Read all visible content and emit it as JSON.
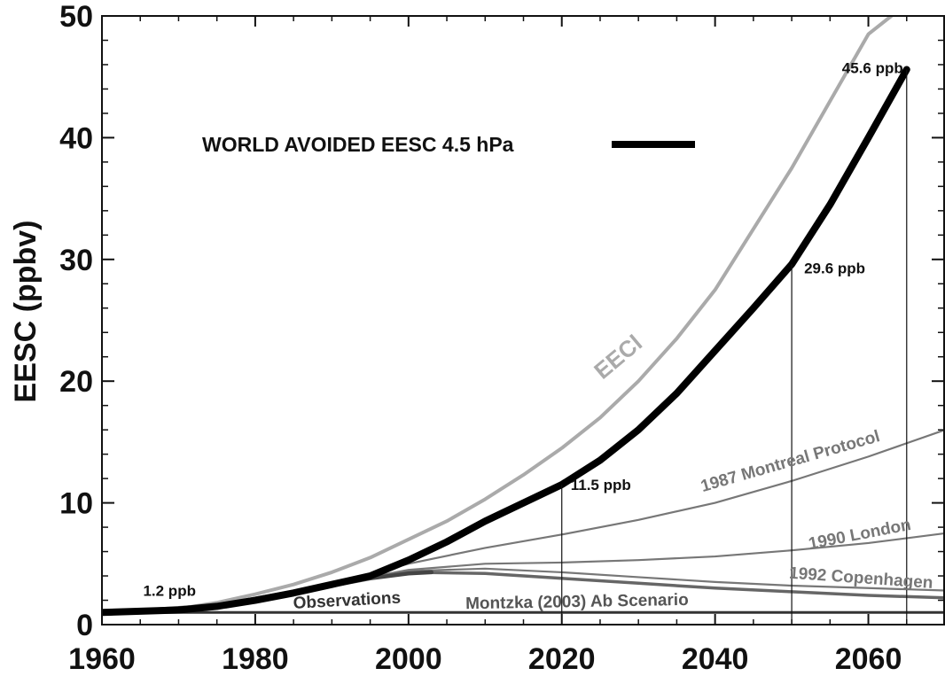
{
  "chart_data": {
    "type": "line",
    "title": "",
    "xlabel": "",
    "ylabel": "EESC (ppbv)",
    "xlim": [
      1960,
      2070
    ],
    "ylim": [
      0,
      50
    ],
    "xticks": [
      1960,
      1980,
      2000,
      2020,
      2040,
      2060
    ],
    "yticks": [
      0,
      10,
      20,
      30,
      40,
      50
    ],
    "grid": false,
    "legend": {
      "placement": "top-left",
      "label": "WORLD AVOIDED EESC 4.5 hPa"
    },
    "colors": {
      "world_avoided": "#000000",
      "eeci": "#aaaaaa",
      "scenarios": "#777777",
      "observations": "#444444"
    },
    "series": [
      {
        "name": "WORLD AVOIDED EESC 4.5 hPa",
        "style": "thick-black",
        "x": [
          1960,
          1970,
          1975,
          1980,
          1985,
          1990,
          1995,
          2000,
          2005,
          2010,
          2015,
          2020,
          2025,
          2030,
          2035,
          2040,
          2045,
          2050,
          2055,
          2060,
          2065
        ],
        "y": [
          1.0,
          1.2,
          1.5,
          2.0,
          2.6,
          3.3,
          4.0,
          5.3,
          6.8,
          8.5,
          10.0,
          11.5,
          13.5,
          16.0,
          19.0,
          22.5,
          26.0,
          29.6,
          34.5,
          40.0,
          45.6
        ]
      },
      {
        "name": "EECl",
        "style": "gray",
        "x": [
          1960,
          1970,
          1975,
          1980,
          1985,
          1990,
          1995,
          2000,
          2005,
          2010,
          2015,
          2020,
          2025,
          2030,
          2035,
          2040,
          2045,
          2050,
          2055,
          2060,
          2063
        ],
        "y": [
          1.0,
          1.3,
          1.8,
          2.5,
          3.3,
          4.3,
          5.5,
          7.0,
          8.5,
          10.3,
          12.3,
          14.5,
          17.0,
          20.0,
          23.5,
          27.5,
          32.5,
          37.5,
          43.0,
          48.5,
          50.0
        ]
      },
      {
        "name": "1987 Montreal Protocol",
        "style": "gray",
        "x": [
          1960,
          1975,
          1990,
          2000,
          2010,
          2020,
          2030,
          2040,
          2050,
          2060,
          2070
        ],
        "y": [
          1.0,
          1.6,
          3.3,
          5.0,
          6.3,
          7.4,
          8.6,
          10.0,
          11.8,
          13.8,
          16.0
        ]
      },
      {
        "name": "1990 London",
        "style": "gray",
        "x": [
          1960,
          1975,
          1990,
          2000,
          2010,
          2020,
          2030,
          2040,
          2050,
          2060,
          2070
        ],
        "y": [
          1.0,
          1.6,
          3.3,
          4.5,
          5.0,
          5.1,
          5.3,
          5.6,
          6.1,
          6.7,
          7.5
        ]
      },
      {
        "name": "1992 Copenhagen",
        "style": "gray",
        "x": [
          1960,
          1975,
          1990,
          2000,
          2010,
          2020,
          2030,
          2040,
          2050,
          2060,
          2070
        ],
        "y": [
          1.0,
          1.6,
          3.3,
          4.4,
          4.6,
          4.3,
          3.9,
          3.5,
          3.2,
          3.0,
          2.8
        ]
      },
      {
        "name": "Montzka (2003) Ab Scenario",
        "style": "gray",
        "x": [
          1960,
          1975,
          1990,
          2000,
          2010,
          2020,
          2030,
          2040,
          2050,
          2060,
          2070
        ],
        "y": [
          1.0,
          1.6,
          3.3,
          4.3,
          4.2,
          3.8,
          3.4,
          3.0,
          2.7,
          2.4,
          2.2
        ]
      },
      {
        "name": "Observations",
        "style": "dark",
        "x": [
          1960,
          1970,
          1975,
          1980,
          1985,
          1990,
          1995,
          2000,
          2003
        ],
        "y": [
          1.0,
          1.2,
          1.5,
          2.0,
          2.6,
          3.2,
          3.8,
          4.2,
          4.3
        ]
      }
    ],
    "baseline": {
      "x": [
        1960,
        2070
      ],
      "y": [
        1.0,
        1.0
      ]
    },
    "curve_labels": [
      {
        "text": "EECl",
        "series": "EECl",
        "x": 2028,
        "y": 21.5,
        "angle": -40
      },
      {
        "text": "1987 Montreal Protocol",
        "series": "1987 Montreal Protocol",
        "x": 2050,
        "y": 13.0,
        "angle": -16
      },
      {
        "text": "1990 London",
        "series": "1990 London",
        "x": 2059,
        "y": 7.0,
        "angle": -11
      },
      {
        "text": "1992 Copenhagen",
        "series": "1992 Copenhagen",
        "x": 2059,
        "y": 3.4,
        "angle": 4
      },
      {
        "text": "Observations",
        "series": "Observations",
        "x": 1992,
        "y": 1.55,
        "angle": -3
      },
      {
        "text": "Montzka (2003) Ab Scenario",
        "series": "Montzka (2003) Ab Scenario",
        "x": 2022,
        "y": 1.45,
        "angle": -1
      }
    ],
    "annotations": [
      {
        "text": "1.2 ppb",
        "x": 1970,
        "y": 1.2,
        "droplines": false
      },
      {
        "text": "11.5 ppb",
        "x": 2020,
        "y": 11.5,
        "droplines": true
      },
      {
        "text": "29.6 ppb",
        "x": 2050,
        "y": 29.6,
        "droplines": true
      },
      {
        "text": "45.6 ppb",
        "x": 2065,
        "y": 45.6,
        "droplines": true
      }
    ]
  }
}
